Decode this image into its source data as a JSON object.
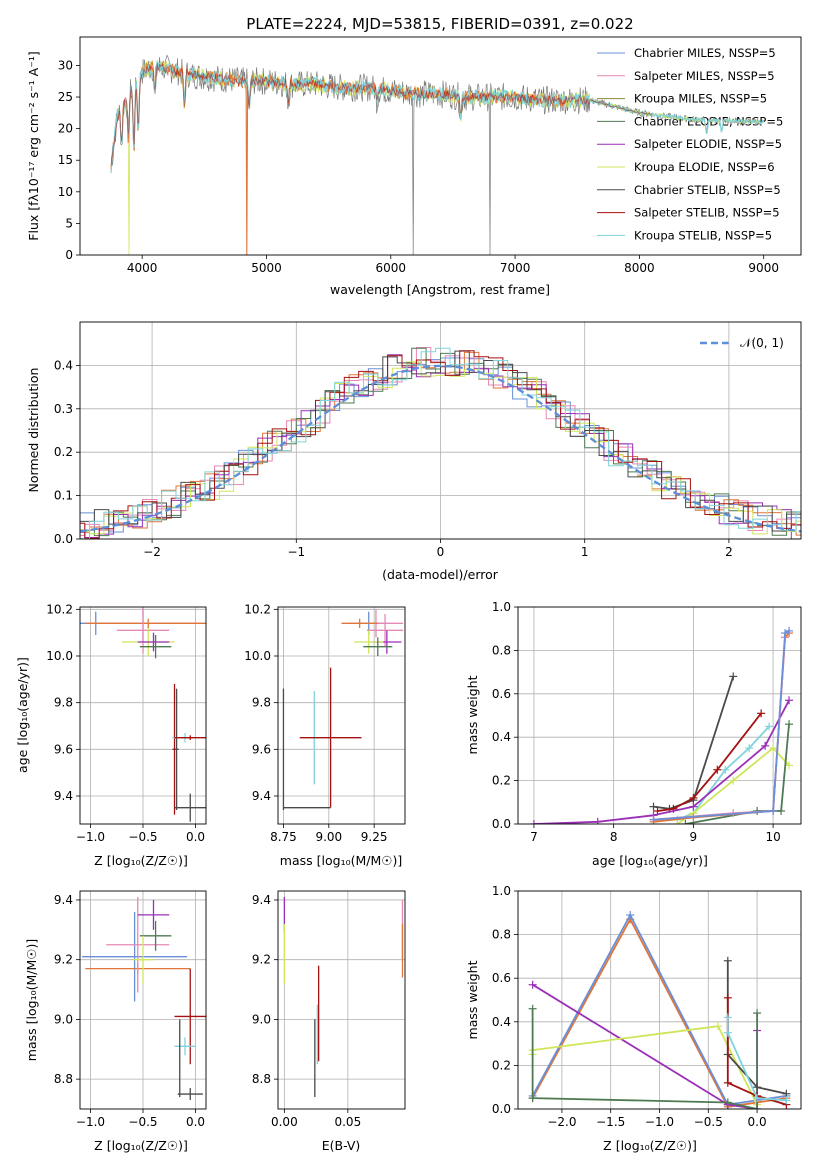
{
  "colors": {
    "chabrier_miles": "#6a8fd8",
    "salpeter_miles": "#e589b6",
    "kroupa_miles": "#8f8a30",
    "chabrier_elodie": "#4e7a52",
    "salpeter_elodie": "#9b2fb8",
    "kroupa_elodie": "#cfe65a",
    "chabrier_stelib": "#4a4a4a",
    "salpeter_stelib": "#a51010",
    "kroupa_stelib": "#7fd3dc",
    "orange": "#e0763a",
    "normal_curve": "#5b8fd9",
    "grid": "#b0b0b0"
  },
  "chart_data": [
    {
      "id": "spectrum",
      "type": "line",
      "title": "PLATE=2224, MJD=53815, FIBERID=0391, z=0.022",
      "xlabel": "wavelength [Angstrom, rest frame]",
      "ylabel": "Flux [fλ10⁻¹⁷ erg cm⁻² s⁻¹ A⁻¹]",
      "xlim": [
        3500,
        9300
      ],
      "ylim": [
        0,
        34.5
      ],
      "xticks": [
        4000,
        5000,
        6000,
        7000,
        8000,
        9000
      ],
      "yticks": [
        0,
        5,
        10,
        15,
        20,
        25,
        30
      ],
      "legend": "top-right",
      "legend_entries": [
        "Chabrier MILES, NSSP=5",
        "Salpeter MILES, NSSP=5",
        "Kroupa MILES, NSSP=5",
        "Chabrier ELODIE, NSSP=5",
        "Salpeter ELODIE, NSSP=5",
        "Kroupa ELODIE, NSSP=6",
        "Chabrier STELIB, NSSP=5",
        "Salpeter STELIB, NSSP=5",
        "Kroupa STELIB, NSSP=5"
      ],
      "continuum": {
        "x": [
          3750,
          3800,
          3900,
          4000,
          4100,
          4200,
          4400,
          4600,
          4800,
          5000,
          5200,
          5400,
          5600,
          5800,
          6000,
          6200,
          6400,
          6600,
          6800,
          7000,
          7200,
          7400,
          7600,
          7700,
          7800,
          8000,
          8200,
          8400,
          8600,
          8800,
          9000
        ],
        "y": [
          14,
          22,
          26,
          29,
          30,
          29.5,
          28.5,
          28,
          27.5,
          27.5,
          27,
          27,
          26.5,
          26.5,
          26,
          25.5,
          25.5,
          25,
          25,
          25,
          24.5,
          24.5,
          24.5,
          24,
          23.5,
          22.5,
          22,
          21.5,
          21.3,
          21.2,
          21
        ]
      }
    },
    {
      "id": "residual_hist",
      "type": "line",
      "xlabel": "(data-model)/error",
      "ylabel": "Normed distribution",
      "xlim": [
        -2.5,
        2.5
      ],
      "ylim": [
        0,
        0.5
      ],
      "xticks": [
        -2,
        -1,
        0,
        1,
        2
      ],
      "yticks": [
        0.0,
        0.1,
        0.2,
        0.3,
        0.4
      ],
      "legend": "top-right",
      "curve_label": "𝒩(0, 1)"
    },
    {
      "id": "age_vs_Z",
      "type": "scatter",
      "xlabel": "Z [log₁₀(Z/Z☉)]",
      "ylabel": "age  [log₁₀(age/yr)]",
      "xlim": [
        -1.1,
        0.1
      ],
      "ylim": [
        9.28,
        10.21
      ],
      "xticks": [
        -1.0,
        -0.5,
        0.0
      ],
      "yticks": [
        9.4,
        9.6,
        9.8,
        10.0,
        10.2
      ],
      "points": [
        {
          "c": "chabrier_miles",
          "x": -0.95,
          "y": 10.14,
          "xe": 0.15,
          "ye": 0.05
        },
        {
          "c": "salpeter_miles",
          "x": -0.5,
          "y": 10.14,
          "xe": 0.55,
          "ye": 0.08
        },
        {
          "c": "orange",
          "x": -0.45,
          "y": 10.14,
          "xe": 0.6,
          "ye": 0.02
        },
        {
          "c": "salpeter_miles",
          "x": -0.5,
          "y": 10.11,
          "xe": 0.25,
          "ye": 0.1
        },
        {
          "c": "kroupa_elodie",
          "x": -0.45,
          "y": 10.06,
          "xe": 0.25,
          "ye": 0.06
        },
        {
          "c": "salpeter_elodie",
          "x": -0.4,
          "y": 10.06,
          "xe": 0.15,
          "ye": 0.04
        },
        {
          "c": "chabrier_elodie",
          "x": -0.38,
          "y": 10.04,
          "xe": 0.15,
          "ye": 0.05
        },
        {
          "c": "salpeter_stelib",
          "x": -0.2,
          "y": 9.6,
          "xe": 0.02,
          "ye": 0.28
        },
        {
          "c": "chabrier_stelib",
          "x": -0.18,
          "y": 9.6,
          "xe": 0.02,
          "ye": 0.26
        },
        {
          "c": "kroupa_stelib",
          "x": -0.1,
          "y": 9.65,
          "xe": 0.12,
          "ye": 0.02
        },
        {
          "c": "salpeter_stelib",
          "x": -0.05,
          "y": 9.65,
          "xe": 0.15,
          "ye": 0.01
        },
        {
          "c": "chabrier_stelib",
          "x": -0.05,
          "y": 9.35,
          "xe": 0.15,
          "ye": 0.06
        }
      ]
    },
    {
      "id": "age_vs_mass",
      "type": "scatter",
      "xlabel": "mass [log₁₀(M/M☉)]",
      "ylabel": "",
      "xlim": [
        8.72,
        9.42
      ],
      "ylim": [
        9.28,
        10.21
      ],
      "xticks": [
        8.75,
        9.0,
        9.25
      ],
      "yticks": [
        9.4,
        9.6,
        9.8,
        10.0,
        10.2
      ],
      "points": [
        {
          "c": "chabrier_miles",
          "x": 9.22,
          "y": 10.14,
          "xe": 0.1,
          "ye": 0.05
        },
        {
          "c": "salpeter_miles",
          "x": 9.26,
          "y": 10.14,
          "xe": 0.15,
          "ye": 0.06
        },
        {
          "c": "orange",
          "x": 9.17,
          "y": 10.14,
          "xe": 0.1,
          "ye": 0.02
        },
        {
          "c": "salpeter_miles",
          "x": 9.31,
          "y": 10.11,
          "xe": 0.1,
          "ye": 0.07
        },
        {
          "c": "salpeter_elodie",
          "x": 9.32,
          "y": 10.06,
          "xe": 0.08,
          "ye": 0.05
        },
        {
          "c": "kroupa_elodie",
          "x": 9.22,
          "y": 10.06,
          "xe": 0.08,
          "ye": 0.05
        },
        {
          "c": "chabrier_elodie",
          "x": 9.27,
          "y": 10.04,
          "xe": 0.08,
          "ye": 0.04
        },
        {
          "c": "kroupa_stelib",
          "x": 8.92,
          "y": 9.65,
          "xe": 0.04,
          "ye": 0.2
        },
        {
          "c": "salpeter_stelib",
          "x": 9.01,
          "y": 9.65,
          "xe": 0.17,
          "ye": 0.3
        },
        {
          "c": "chabrier_stelib",
          "x": 8.75,
          "y": 9.6,
          "xe": 0.0,
          "ye": 0.26
        },
        {
          "c": "chabrier_stelib",
          "x": 8.88,
          "y": 9.35,
          "xe": 0.13,
          "ye": 0.0
        }
      ]
    },
    {
      "id": "weight_vs_age",
      "type": "line",
      "xlabel": "age  [log₁₀(age/yr)]",
      "ylabel": "mass weight",
      "xlim": [
        6.8,
        10.35
      ],
      "ylim": [
        0,
        1
      ],
      "xticks": [
        7,
        8,
        9,
        10
      ],
      "yticks": [
        0.0,
        0.2,
        0.4,
        0.6,
        0.8,
        1.0
      ],
      "series": [
        {
          "c": "chabrier_stelib",
          "x": [
            8.5,
            8.7,
            9.0,
            9.5
          ],
          "y": [
            0.08,
            0.07,
            0.11,
            0.68
          ]
        },
        {
          "c": "salpeter_stelib",
          "x": [
            8.55,
            8.75,
            9.0,
            9.3,
            9.85
          ],
          "y": [
            0.06,
            0.07,
            0.12,
            0.25,
            0.51
          ]
        },
        {
          "c": "kroupa_stelib",
          "x": [
            8.8,
            9.0,
            9.4,
            9.7,
            9.95
          ],
          "y": [
            0.02,
            0.05,
            0.25,
            0.35,
            0.45
          ]
        },
        {
          "c": "kroupa_elodie",
          "x": [
            8.8,
            9.0,
            9.5,
            10.0,
            10.2
          ],
          "y": [
            0.0,
            0.05,
            0.2,
            0.35,
            0.27
          ]
        },
        {
          "c": "salpeter_elodie",
          "x": [
            7.0,
            7.8,
            8.5,
            9.0,
            9.9,
            10.2
          ],
          "y": [
            0.0,
            0.01,
            0.04,
            0.08,
            0.36,
            0.57
          ]
        },
        {
          "c": "chabrier_elodie",
          "x": [
            8.9,
            9.8,
            10.1,
            10.2
          ],
          "y": [
            0.0,
            0.06,
            0.06,
            0.46
          ]
        },
        {
          "c": "orange",
          "x": [
            8.5,
            9.0,
            10.0,
            10.15,
            10.2
          ],
          "y": [
            0.01,
            0.03,
            0.06,
            0.86,
            0.88
          ]
        },
        {
          "c": "salpeter_miles",
          "x": [
            8.5,
            9.5,
            10.0,
            10.15
          ],
          "y": [
            0.02,
            0.05,
            0.06,
            0.86
          ]
        },
        {
          "c": "chabrier_miles",
          "x": [
            8.5,
            10.0,
            10.15,
            10.2
          ],
          "y": [
            0.02,
            0.06,
            0.88,
            0.89
          ]
        }
      ]
    },
    {
      "id": "mass_vs_Z",
      "type": "scatter",
      "xlabel": "Z [log₁₀(Z/Z☉)]",
      "ylabel": "mass [log₁₀(M/M☉)]",
      "xlim": [
        -1.1,
        0.1
      ],
      "ylim": [
        8.7,
        9.43
      ],
      "xticks": [
        -1.0,
        -0.5,
        0.0
      ],
      "yticks": [
        8.8,
        9.0,
        9.2,
        9.4
      ],
      "points": [
        {
          "c": "chabrier_miles",
          "x": -0.58,
          "y": 9.21,
          "xe": 0.5,
          "ye": 0.15
        },
        {
          "c": "orange",
          "x": -0.55,
          "y": 9.17,
          "xe": 0.5,
          "ye": 0.02
        },
        {
          "c": "salpeter_miles",
          "x": -0.55,
          "y": 9.25,
          "xe": 0.3,
          "ye": 0.16
        },
        {
          "c": "salpeter_elodie",
          "x": -0.4,
          "y": 9.35,
          "xe": 0.15,
          "ye": 0.05
        },
        {
          "c": "chabrier_elodie",
          "x": -0.38,
          "y": 9.28,
          "xe": 0.15,
          "ye": 0.05
        },
        {
          "c": "kroupa_elodie",
          "x": -0.5,
          "y": 9.2,
          "xe": 0.1,
          "ye": 0.08
        },
        {
          "c": "salpeter_stelib",
          "x": -0.05,
          "y": 9.01,
          "xe": 0.15,
          "ye": 0.16
        },
        {
          "c": "kroupa_stelib",
          "x": -0.1,
          "y": 8.91,
          "xe": 0.1,
          "ye": 0.03
        },
        {
          "c": "chabrier_stelib",
          "x": -0.05,
          "y": 8.75,
          "xe": 0.12,
          "ye": 0.02
        },
        {
          "c": "chabrier_stelib",
          "x": -0.15,
          "y": 8.87,
          "xe": 0.0,
          "ye": 0.13
        }
      ]
    },
    {
      "id": "mass_vs_ebv",
      "type": "scatter",
      "xlabel": "E(B-V)",
      "ylabel": "",
      "xlim": [
        -0.005,
        0.095
      ],
      "ylim": [
        8.7,
        9.43
      ],
      "xticks": [
        0.0,
        0.05
      ],
      "yticks": [
        8.8,
        9.0,
        9.2,
        9.4
      ],
      "points": [
        {
          "c": "salpeter_elodie",
          "x": 0.0,
          "y": 9.35,
          "xe": 0.0,
          "ye": 0.06
        },
        {
          "c": "kroupa_elodie",
          "x": 0.0,
          "y": 9.22,
          "xe": 0.0,
          "ye": 0.1
        },
        {
          "c": "chabrier_stelib",
          "x": 0.024,
          "y": 8.87,
          "xe": 0.0,
          "ye": 0.13
        },
        {
          "c": "kroupa_stelib",
          "x": 0.026,
          "y": 8.95,
          "xe": 0.0,
          "ye": 0.1
        },
        {
          "c": "salpeter_stelib",
          "x": 0.027,
          "y": 9.02,
          "xe": 0.0,
          "ye": 0.16
        },
        {
          "c": "salpeter_miles",
          "x": 0.093,
          "y": 9.3,
          "xe": 0.0,
          "ye": 0.1
        },
        {
          "c": "orange",
          "x": 0.093,
          "y": 9.23,
          "xe": 0.0,
          "ye": 0.09
        }
      ]
    },
    {
      "id": "weight_vs_Z",
      "type": "line",
      "xlabel": "Z [log₁₀(Z/Z☉)]",
      "ylabel": "mass weight",
      "xlim": [
        -2.45,
        0.45
      ],
      "ylim": [
        0,
        1
      ],
      "xticks": [
        -2.0,
        -1.5,
        -1.0,
        -0.5,
        0.0
      ],
      "yticks": [
        0.0,
        0.2,
        0.4,
        0.6,
        0.8,
        1.0
      ],
      "series": [
        {
          "c": "orange",
          "x": [
            -2.3,
            -1.3,
            -0.3,
            0.3
          ],
          "y": [
            0.05,
            0.87,
            0.01,
            0.05
          ]
        },
        {
          "c": "chabrier_miles",
          "x": [
            -2.3,
            -1.3,
            -0.3,
            0.3
          ],
          "y": [
            0.06,
            0.89,
            0.02,
            0.06
          ]
        },
        {
          "c": "salpeter_elodie",
          "x": [
            -2.3,
            -0.3,
            0.0,
            0.0
          ],
          "y": [
            0.57,
            0.02,
            0.0,
            0.36
          ]
        },
        {
          "c": "kroupa_elodie",
          "x": [
            -2.3,
            -2.3,
            -0.4,
            0.0
          ],
          "y": [
            0.25,
            0.27,
            0.38,
            0.02
          ]
        },
        {
          "c": "chabrier_elodie",
          "x": [
            -2.3,
            -2.3,
            -0.3,
            0.0,
            0.0
          ],
          "y": [
            0.46,
            0.05,
            0.03,
            0.0,
            0.44
          ]
        },
        {
          "c": "chabrier_stelib",
          "x": [
            -0.3,
            -0.3,
            0.0,
            0.3
          ],
          "y": [
            0.68,
            0.25,
            0.1,
            0.07
          ]
        },
        {
          "c": "salpeter_stelib",
          "x": [
            -0.3,
            -0.3,
            0.0,
            0.3
          ],
          "y": [
            0.51,
            0.12,
            0.06,
            0.02
          ]
        },
        {
          "c": "kroupa_stelib",
          "x": [
            -0.3,
            -0.3,
            0.0,
            0.3
          ],
          "y": [
            0.42,
            0.35,
            0.05,
            0.04
          ]
        }
      ]
    }
  ]
}
